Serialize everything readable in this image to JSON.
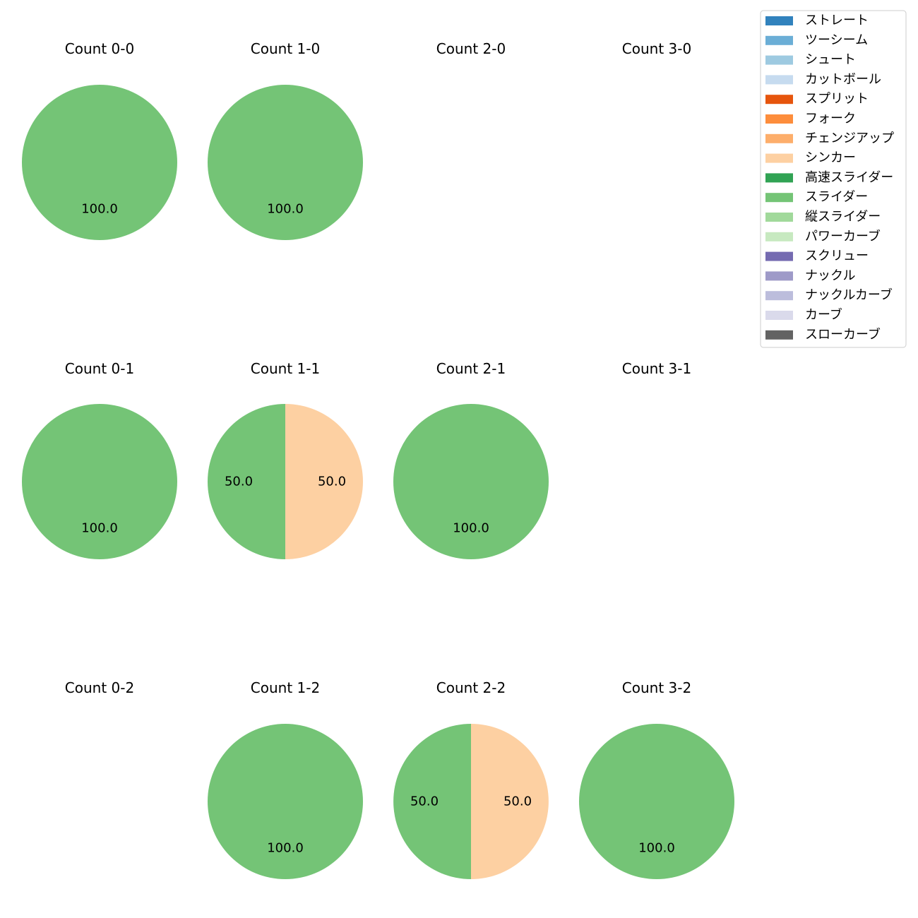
{
  "chart_data": {
    "type": "pie",
    "grid": {
      "rows": 3,
      "cols": 4
    },
    "legend": {
      "placement": "top-right",
      "entries": [
        {
          "label": "ストレート",
          "color": "#3182bd"
        },
        {
          "label": "ツーシーム",
          "color": "#6baed6"
        },
        {
          "label": "シュート",
          "color": "#9ecae1"
        },
        {
          "label": "カットボール",
          "color": "#c6dbef"
        },
        {
          "label": "スプリット",
          "color": "#e6550d"
        },
        {
          "label": "フォーク",
          "color": "#fd8d3c"
        },
        {
          "label": "チェンジアップ",
          "color": "#fdae6b"
        },
        {
          "label": "シンカー",
          "color": "#fdd0a2"
        },
        {
          "label": "高速スライダー",
          "color": "#31a354"
        },
        {
          "label": "スライダー",
          "color": "#74c476"
        },
        {
          "label": "縦スライダー",
          "color": "#a1d99b"
        },
        {
          "label": "パワーカーブ",
          "color": "#c7e9c0"
        },
        {
          "label": "スクリュー",
          "color": "#756bb1"
        },
        {
          "label": "ナックル",
          "color": "#9e9ac8"
        },
        {
          "label": "ナックルカーブ",
          "color": "#bcbddc"
        },
        {
          "label": "カーブ",
          "color": "#dadaeb"
        },
        {
          "label": "スローカーブ",
          "color": "#636363"
        }
      ]
    },
    "panels": [
      {
        "title": "Count 0-0",
        "row": 0,
        "col": 0,
        "slices": [
          {
            "pitch": "スライダー",
            "value": 100.0,
            "label": "100.0"
          }
        ]
      },
      {
        "title": "Count 1-0",
        "row": 0,
        "col": 1,
        "slices": [
          {
            "pitch": "スライダー",
            "value": 100.0,
            "label": "100.0"
          }
        ]
      },
      {
        "title": "Count 2-0",
        "row": 0,
        "col": 2,
        "slices": []
      },
      {
        "title": "Count 3-0",
        "row": 0,
        "col": 3,
        "slices": []
      },
      {
        "title": "Count 0-1",
        "row": 1,
        "col": 0,
        "slices": [
          {
            "pitch": "スライダー",
            "value": 100.0,
            "label": "100.0"
          }
        ]
      },
      {
        "title": "Count 1-1",
        "row": 1,
        "col": 1,
        "slices": [
          {
            "pitch": "スライダー",
            "value": 50.0,
            "label": "50.0"
          },
          {
            "pitch": "シンカー",
            "value": 50.0,
            "label": "50.0"
          }
        ]
      },
      {
        "title": "Count 2-1",
        "row": 1,
        "col": 2,
        "slices": [
          {
            "pitch": "スライダー",
            "value": 100.0,
            "label": "100.0"
          }
        ]
      },
      {
        "title": "Count 3-1",
        "row": 1,
        "col": 3,
        "slices": []
      },
      {
        "title": "Count 0-2",
        "row": 2,
        "col": 0,
        "slices": []
      },
      {
        "title": "Count 1-2",
        "row": 2,
        "col": 1,
        "slices": [
          {
            "pitch": "スライダー",
            "value": 100.0,
            "label": "100.0"
          }
        ]
      },
      {
        "title": "Count 2-2",
        "row": 2,
        "col": 2,
        "slices": [
          {
            "pitch": "スライダー",
            "value": 50.0,
            "label": "50.0"
          },
          {
            "pitch": "シンカー",
            "value": 50.0,
            "label": "50.0"
          }
        ]
      },
      {
        "title": "Count 3-2",
        "row": 2,
        "col": 3,
        "slices": [
          {
            "pitch": "スライダー",
            "value": 100.0,
            "label": "100.0"
          }
        ]
      }
    ]
  }
}
